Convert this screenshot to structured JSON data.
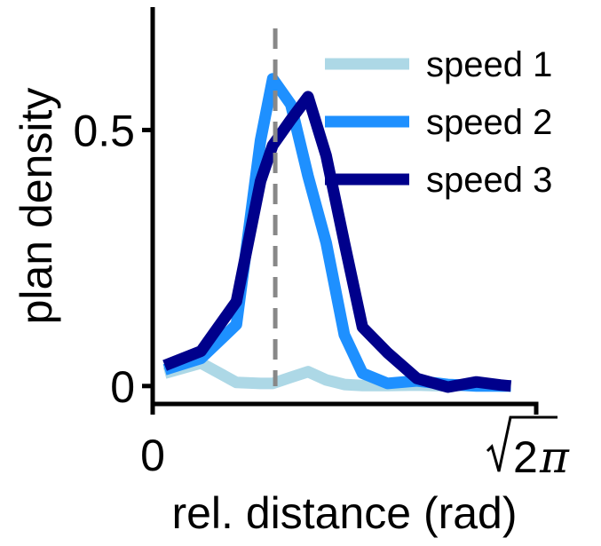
{
  "chart_data": {
    "type": "line",
    "xlabel": "rel. distance (rad)",
    "ylabel": "plan density",
    "x_tick_labels": [
      "0"
    ],
    "x_max_label": {
      "radicand": "2",
      "symbol": "π"
    },
    "y_tick_labels": [
      "0",
      "0.5"
    ],
    "xlim": [
      0,
      4.443
    ],
    "ylim": [
      -0.035,
      0.74
    ],
    "x_ticks": [
      0,
      4.443
    ],
    "y_ticks": [
      0,
      0.5
    ],
    "reference_line": {
      "x": 1.42,
      "style": "dashed",
      "color": "#888888"
    },
    "legend_position": "top-right",
    "grid": false,
    "x": [
      0.14,
      0.56,
      0.97,
      1.25,
      1.39,
      1.6,
      1.8,
      2.01,
      2.22,
      2.43,
      2.72,
      3.06,
      3.42,
      3.75,
      4.03,
      4.15
    ],
    "series": [
      {
        "name": "speed 1",
        "color": "#add8e6",
        "values": [
          0.025,
          0.045,
          0.007,
          0.005,
          0.005,
          0.017,
          0.028,
          0.012,
          0.003,
          0.001,
          0.001,
          0.002,
          0.0,
          0.003,
          0.0,
          0.0
        ]
      },
      {
        "name": "speed 2",
        "color": "#1e90ff",
        "values": [
          0.032,
          0.054,
          0.12,
          0.48,
          0.6,
          0.55,
          0.41,
          0.28,
          0.1,
          0.025,
          0.005,
          0.01,
          0.003,
          0.0,
          0.0,
          0.0
        ]
      },
      {
        "name": "speed 3",
        "color": "#00008b",
        "values": [
          0.04,
          0.068,
          0.165,
          0.4,
          0.47,
          0.52,
          0.565,
          0.45,
          0.28,
          0.115,
          0.065,
          0.015,
          -0.002,
          0.008,
          0.002,
          0.0
        ]
      }
    ]
  }
}
